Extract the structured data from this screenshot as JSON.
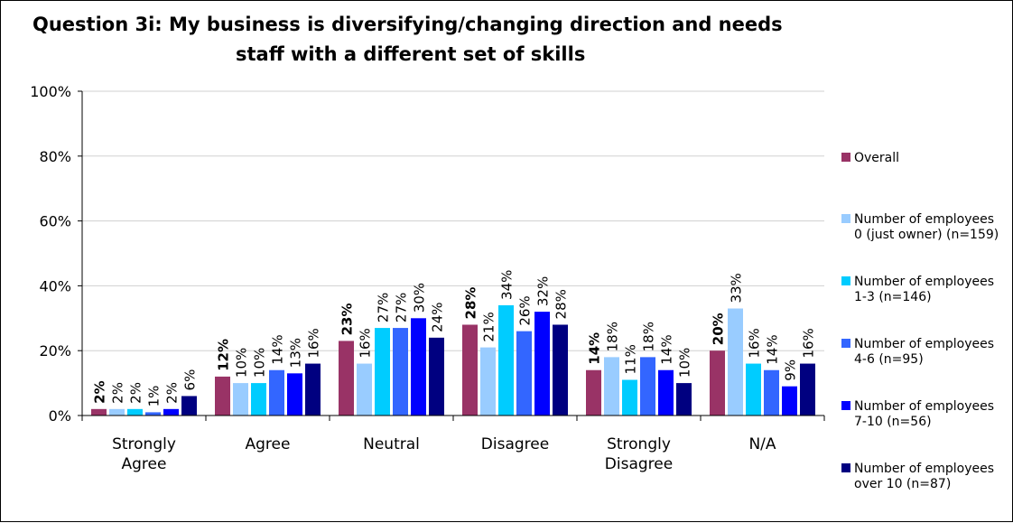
{
  "chart_data": {
    "type": "bar",
    "title_line1": "Question 3i:  My business is diversifying/changing direction and needs",
    "title_line2": "staff with a different set of skills",
    "ylim": [
      0,
      100
    ],
    "yticks": [
      "0%",
      "20%",
      "40%",
      "60%",
      "80%",
      "100%"
    ],
    "categories": [
      [
        "Strongly",
        "Agree"
      ],
      [
        "Agree"
      ],
      [
        "Neutral"
      ],
      [
        "Disagree"
      ],
      [
        "Strongly",
        "Disagree"
      ],
      [
        "N/A"
      ]
    ],
    "series": [
      {
        "name": [
          "Overall"
        ],
        "color": "#993366",
        "bold": true,
        "values": [
          2,
          12,
          23,
          28,
          14,
          20
        ]
      },
      {
        "name": [
          "Number of employees",
          "0 (just owner) (n=159)"
        ],
        "color": "#99CCFF",
        "values": [
          2,
          10,
          16,
          21,
          18,
          33
        ]
      },
      {
        "name": [
          "Number of employees",
          "1-3 (n=146)"
        ],
        "color": "#00CCFF",
        "values": [
          2,
          10,
          27,
          34,
          11,
          16
        ]
      },
      {
        "name": [
          "Number of employees",
          "4-6 (n=95)"
        ],
        "color": "#3366FF",
        "values": [
          1,
          14,
          27,
          26,
          18,
          14
        ]
      },
      {
        "name": [
          "Number of employees",
          "7-10 (n=56)"
        ],
        "color": "#0000FF",
        "values": [
          2,
          13,
          30,
          32,
          14,
          9
        ]
      },
      {
        "name": [
          "Number of employees",
          "over 10 (n=87)"
        ],
        "color": "#000080",
        "values": [
          6,
          16,
          24,
          28,
          10,
          16
        ]
      }
    ],
    "grid": true,
    "legend_position": "right"
  }
}
